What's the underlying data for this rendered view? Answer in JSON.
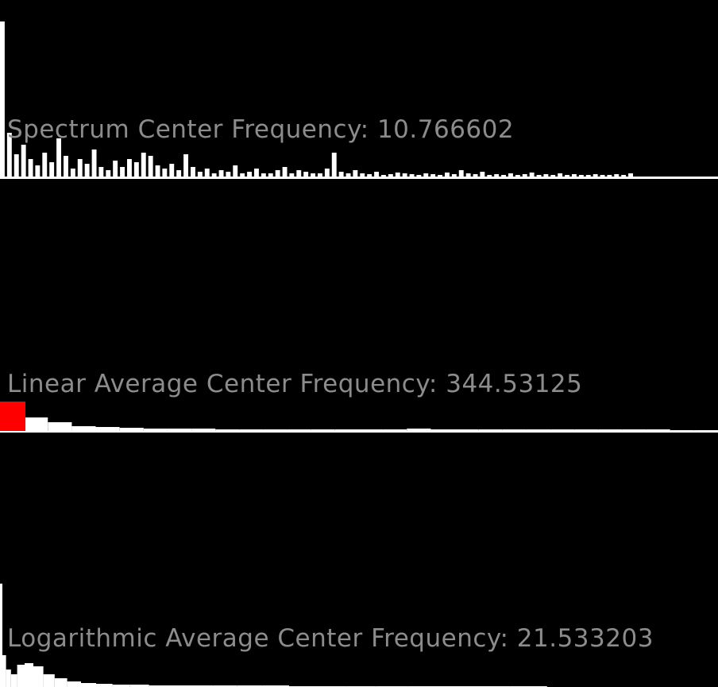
{
  "colors": {
    "background": "#000000",
    "bars": "#ffffff",
    "highlight": "#ff0000",
    "label": "#8c8c8c"
  },
  "panels": {
    "spectrum": {
      "label_prefix": "Spectrum Center Frequency: ",
      "value": "10.766602"
    },
    "linear": {
      "label_prefix": "Linear Average Center Frequency: ",
      "value": "344.53125"
    },
    "log": {
      "label_prefix": "Logarithmic Average Center Frequency: ",
      "value": "21.533203"
    }
  },
  "chart_data": [
    {
      "type": "bar",
      "name": "spectrum",
      "highlight_index": 1,
      "values": [
        195,
        55,
        28,
        40,
        22,
        14,
        30,
        18,
        48,
        26,
        10,
        22,
        16,
        34,
        12,
        8,
        20,
        12,
        22,
        18,
        30,
        26,
        14,
        10,
        16,
        8,
        28,
        12,
        6,
        10,
        4,
        8,
        6,
        14,
        4,
        6,
        10,
        4,
        4,
        8,
        12,
        4,
        8,
        6,
        4,
        4,
        10,
        30,
        6,
        4,
        8,
        4,
        3,
        6,
        2,
        3,
        5,
        4,
        3,
        2,
        4,
        3,
        2,
        5,
        3,
        8,
        4,
        3,
        6,
        2,
        3,
        2,
        4,
        2,
        3,
        5,
        2,
        3,
        2,
        4,
        2,
        3,
        2,
        2,
        3,
        2,
        2,
        3,
        2,
        4
      ]
    },
    {
      "type": "bar",
      "name": "linear",
      "highlight_index": 0,
      "values": [
        37,
        17,
        11,
        6,
        5,
        4,
        3,
        3,
        3,
        2,
        2,
        2,
        2,
        2,
        2,
        2,
        2,
        3,
        2,
        2,
        2,
        2,
        2,
        2,
        2,
        2,
        2,
        2,
        1,
        1
      ]
    },
    {
      "type": "bar",
      "name": "log",
      "highlight_index": 0,
      "values": [
        130,
        40,
        22,
        16,
        28,
        30,
        26,
        16,
        11,
        7,
        5,
        4,
        3,
        3,
        2,
        2,
        2,
        2,
        2,
        2,
        1,
        1,
        1,
        1,
        1,
        1,
        1,
        1
      ]
    }
  ]
}
